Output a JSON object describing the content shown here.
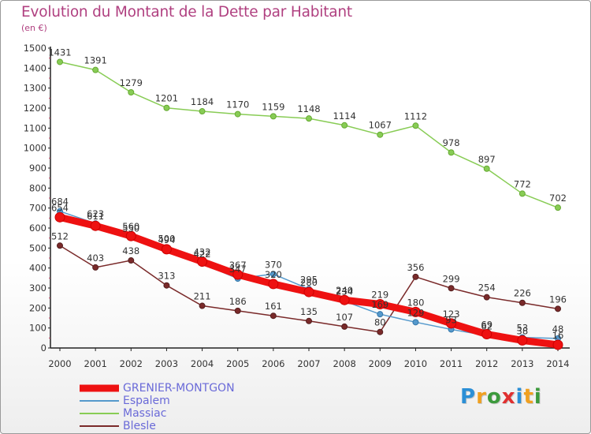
{
  "title": "Evolution du Montant de la Dette par Habitant",
  "unit_label": "(en €)",
  "chart_data": {
    "type": "line",
    "title": "Evolution du Montant de la Dette par Habitant",
    "ylabel": "(en €)",
    "xlabel": "",
    "x": [
      "2000",
      "2001",
      "2002",
      "2003",
      "2004",
      "2005",
      "2006",
      "2007",
      "2008",
      "2009",
      "2010",
      "2011",
      "2012",
      "2013",
      "2014"
    ],
    "ylim": [
      0,
      1500
    ],
    "yticks": [
      0,
      100,
      200,
      300,
      400,
      500,
      600,
      700,
      800,
      900,
      1000,
      1100,
      1200,
      1300,
      1400,
      1500
    ],
    "grid": false,
    "legend_position": "bottom-left",
    "series": [
      {
        "name": "GRENIER-MONTGON",
        "color": "#ee1111",
        "values": [
          654,
          611,
          560,
          494,
          432,
          367,
          320,
          280,
          240,
          219,
          180,
          123,
          69,
          38,
          16
        ]
      },
      {
        "name": "Espalem",
        "color": "#5599cc",
        "values": [
          684,
          623,
          550,
          500,
          422,
          347,
          370,
          295,
          234,
          169,
          129,
          93,
          62,
          53,
          48
        ]
      },
      {
        "name": "Massiac",
        "color": "#88cc55",
        "values": [
          1431,
          1391,
          1279,
          1201,
          1184,
          1170,
          1159,
          1148,
          1114,
          1067,
          1112,
          978,
          897,
          772,
          702
        ]
      },
      {
        "name": "Blesle",
        "color": "#7a2a2a",
        "values": [
          512,
          403,
          438,
          313,
          211,
          186,
          161,
          135,
          107,
          80,
          356,
          299,
          254,
          226,
          196
        ]
      }
    ]
  },
  "logo": {
    "letters": [
      {
        "ch": "P",
        "color": "#2b8fd6"
      },
      {
        "ch": "r",
        "color": "#f0a020"
      },
      {
        "ch": "o",
        "color": "#3c9a3c"
      },
      {
        "ch": "x",
        "color": "#e03030"
      },
      {
        "ch": "i",
        "color": "#2b8fd6"
      },
      {
        "ch": "t",
        "color": "#f0a020"
      },
      {
        "ch": "i",
        "color": "#3c9a3c"
      }
    ]
  }
}
